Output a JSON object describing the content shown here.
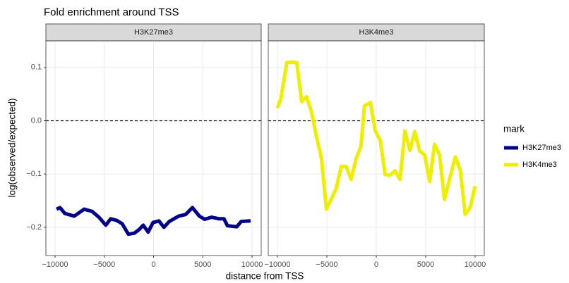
{
  "title": "Fold enrichment around TSS",
  "xlabel": "distance from TSS",
  "ylabel": "log(observed/expected)",
  "legend_title": "mark",
  "chart_data": [
    {
      "type": "line",
      "facet": "H3K27me3",
      "hline": 0,
      "xlim": [
        -10930,
        10930
      ],
      "ylim": [
        -0.253,
        0.15
      ],
      "xticks": [
        {
          "value": -10000,
          "label": "−10000"
        },
        {
          "value": -5000,
          "label": "−5000"
        },
        0,
        5000,
        10000
      ],
      "yticks": [
        {
          "value": -0.2,
          "label": "−0.2"
        },
        {
          "value": -0.1,
          "label": "−0.1"
        },
        {
          "value": 0,
          "label": "0.0"
        },
        0.1
      ],
      "series": [
        {
          "name": "H3K27me3",
          "color": "#00008b",
          "x": [
            -9850,
            -9500,
            -9000,
            -8050,
            -7050,
            -6250,
            -5550,
            -4850,
            -4350,
            -3750,
            -3200,
            -2550,
            -1950,
            -1450,
            -1050,
            -550,
            -50,
            550,
            1050,
            1600,
            2550,
            3250,
            3950,
            4650,
            5200,
            5900,
            6650,
            7150,
            7500,
            8450,
            8900,
            9850
          ],
          "values": [
            -0.166,
            -0.163,
            -0.174,
            -0.179,
            -0.166,
            -0.17,
            -0.181,
            -0.196,
            -0.184,
            -0.187,
            -0.193,
            -0.213,
            -0.211,
            -0.204,
            -0.196,
            -0.209,
            -0.191,
            -0.188,
            -0.2,
            -0.189,
            -0.179,
            -0.176,
            -0.163,
            -0.179,
            -0.185,
            -0.181,
            -0.184,
            -0.184,
            -0.197,
            -0.199,
            -0.189,
            -0.188
          ]
        }
      ]
    },
    {
      "type": "line",
      "facet": "H3K4me3",
      "hline": 0,
      "xlim": [
        -10930,
        10930
      ],
      "ylim": [
        -0.253,
        0.15
      ],
      "xticks": [
        {
          "value": -10000,
          "label": "−10000"
        },
        {
          "value": -5000,
          "label": "−5000"
        },
        0,
        5000,
        10000
      ],
      "yticks": [
        {
          "value": -0.2,
          "label": "−0.2"
        },
        {
          "value": -0.1,
          "label": "−0.1"
        },
        {
          "value": 0,
          "label": "0.0"
        },
        0.1
      ],
      "series": [
        {
          "name": "H3K4me3",
          "color": "#eeee00",
          "x": [
            -10000,
            -9650,
            -9050,
            -8550,
            -8050,
            -7550,
            -7050,
            -6550,
            -6050,
            -5550,
            -5050,
            -4550,
            -4050,
            -3550,
            -3050,
            -2550,
            -2050,
            -1550,
            -1200,
            -600,
            -100,
            400,
            900,
            1400,
            1900,
            2400,
            2900,
            3400,
            3900,
            4400,
            4900,
            5400,
            5900,
            6400,
            6900,
            7500,
            8000,
            8500,
            9000,
            9500,
            10000
          ],
          "values": [
            0.024,
            0.042,
            0.109,
            0.11,
            0.109,
            0.036,
            0.045,
            0.016,
            -0.03,
            -0.07,
            -0.166,
            -0.147,
            -0.127,
            -0.086,
            -0.086,
            -0.11,
            -0.072,
            -0.048,
            0.028,
            0.034,
            -0.019,
            -0.037,
            -0.101,
            -0.102,
            -0.094,
            -0.11,
            -0.019,
            -0.056,
            -0.02,
            -0.057,
            -0.064,
            -0.114,
            -0.044,
            -0.064,
            -0.148,
            -0.103,
            -0.068,
            -0.093,
            -0.176,
            -0.163,
            -0.123
          ]
        }
      ]
    }
  ]
}
